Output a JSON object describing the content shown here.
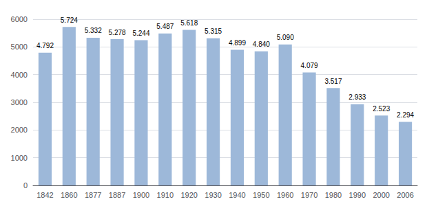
{
  "chart_data": {
    "type": "bar",
    "categories": [
      "1842",
      "1860",
      "1877",
      "1887",
      "1900",
      "1910",
      "1920",
      "1930",
      "1940",
      "1950",
      "1960",
      "1970",
      "1980",
      "1990",
      "2000",
      "2006"
    ],
    "values": [
      4792,
      5724,
      5332,
      5278,
      5244,
      5487,
      5618,
      5315,
      4899,
      4840,
      5090,
      4079,
      3517,
      2933,
      2523,
      2294
    ],
    "value_labels": [
      "4.792",
      "5.724",
      "5.332",
      "5.278",
      "5.244",
      "5.487",
      "5.618",
      "5.315",
      "4.899",
      "4.840",
      "5.090",
      "4.079",
      "3.517",
      "2.933",
      "2.523",
      "2.294"
    ],
    "data_labels": true,
    "color": "#9db8d9",
    "ylim": [
      0,
      6000
    ],
    "yticks": [
      0,
      1000,
      2000,
      3000,
      4000,
      5000,
      6000
    ],
    "grid": true
  }
}
